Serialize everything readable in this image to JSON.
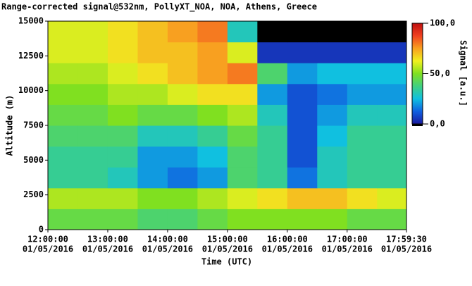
{
  "chart_data": {
    "type": "heatmap",
    "title": "Range-corrected signal@532nm, PollyXT_NOA, NOA, Athens, Greece",
    "xlabel": "Time (UTC)",
    "ylabel": "Altitude (m)",
    "colorbar_label": "Signal [a.u.]",
    "x_edges": [
      12,
      12.5,
      13,
      13.5,
      14,
      14.5,
      15,
      15.5,
      16,
      16.5,
      17,
      17.5,
      17.99167
    ],
    "y_edges": [
      0,
      1500,
      3000,
      4500,
      6000,
      7500,
      9000,
      10500,
      12000,
      13500,
      15000
    ],
    "z": [
      [
        45,
        45,
        45,
        40,
        40,
        45,
        50,
        50,
        50,
        50,
        45,
        45
      ],
      [
        55,
        55,
        55,
        50,
        50,
        55,
        60,
        65,
        70,
        70,
        65,
        60
      ],
      [
        35,
        35,
        30,
        20,
        15,
        20,
        40,
        35,
        15,
        30,
        35,
        35
      ],
      [
        35,
        35,
        35,
        20,
        20,
        25,
        40,
        35,
        10,
        30,
        35,
        35
      ],
      [
        40,
        40,
        40,
        30,
        30,
        35,
        45,
        35,
        10,
        25,
        35,
        35
      ],
      [
        45,
        45,
        50,
        45,
        45,
        50,
        55,
        30,
        10,
        20,
        30,
        30
      ],
      [
        50,
        50,
        55,
        55,
        60,
        65,
        65,
        20,
        10,
        15,
        20,
        20
      ],
      [
        55,
        55,
        60,
        65,
        70,
        75,
        80,
        40,
        20,
        25,
        25,
        25
      ],
      [
        60,
        60,
        65,
        70,
        70,
        75,
        60,
        5,
        5,
        5,
        5,
        5
      ],
      [
        60,
        60,
        65,
        70,
        75,
        80,
        30,
        3,
        3,
        3,
        3,
        3
      ]
    ],
    "xlim": [
      12,
      17.99167
    ],
    "xticks": [
      {
        "value": 12,
        "label": "12:00:00"
      },
      {
        "value": 13,
        "label": "13:00:00"
      },
      {
        "value": 14,
        "label": "14:00:00"
      },
      {
        "value": 15,
        "label": "15:00:00"
      },
      {
        "value": 16,
        "label": "16:00:00"
      },
      {
        "value": 17,
        "label": "17:00:00"
      },
      {
        "value": 17.99167,
        "label": "17:59:30"
      }
    ],
    "xtick_dates": [
      "01/05/2016",
      "01/05/2016",
      "01/05/2016",
      "01/05/2016",
      "01/05/2016",
      "01/05/2016",
      "01/05/2016"
    ],
    "ylim": [
      0,
      15000
    ],
    "yticks": [
      0,
      2500,
      5000,
      7500,
      10000,
      12500,
      15000
    ],
    "clim": [
      0,
      100
    ],
    "cticks": [
      {
        "value": 100,
        "label": "100,0"
      },
      {
        "value": 50,
        "label": "50,0"
      },
      {
        "value": 0,
        "label": "0,0"
      }
    ],
    "colormap": [
      "#1a1aa0",
      "#1060e0",
      "#10c0e0",
      "#40d080",
      "#80e020",
      "#f0f020",
      "#f8a020",
      "#f04020",
      "#c01010"
    ]
  }
}
